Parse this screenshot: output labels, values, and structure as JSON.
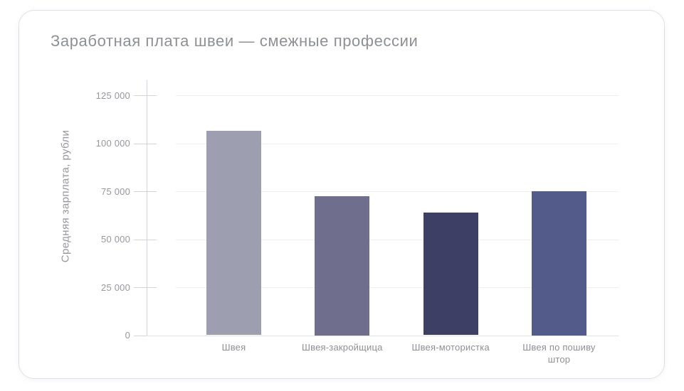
{
  "card": {
    "title": "Заработная плата швеи — смежные профессии"
  },
  "chart_data": {
    "type": "bar",
    "title": "Заработная плата швеи — смежные профессии",
    "categories": [
      "Швея",
      "Швея-закройщица",
      "Швея-мотористка",
      "Швея по пошиву штор"
    ],
    "values": [
      106500,
      72500,
      64000,
      75000
    ],
    "bar_colors": [
      "#9d9eb0",
      "#706e8d",
      "#3e3f65",
      "#535b8a"
    ],
    "xlabel": "",
    "ylabel": "Средняя зарплата, рубли",
    "ylim": [
      0,
      125000
    ],
    "yticks": [
      0,
      25000,
      50000,
      75000,
      100000,
      125000
    ],
    "ytick_labels": [
      "0",
      "25 000",
      "50 000",
      "75 000",
      "100 000",
      "125 000"
    ],
    "grid": true,
    "legend": false
  }
}
